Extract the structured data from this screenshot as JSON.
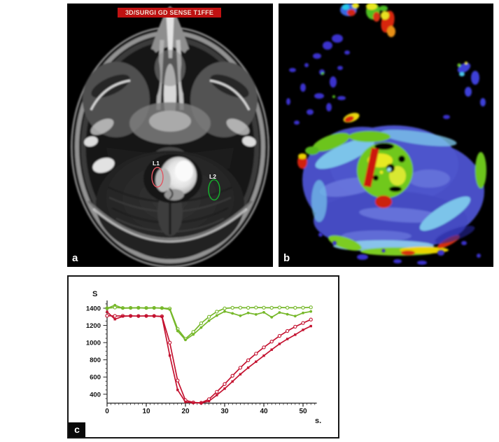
{
  "panel_a": {
    "label": "a",
    "banner_text": "3D/SURGI GD SENSE T1FFE",
    "banner_color": "#c01212",
    "rois": [
      {
        "id": "L1",
        "label": "L1",
        "color": "#e25662"
      },
      {
        "id": "L2",
        "label": "L2",
        "color": "#17a62c"
      }
    ]
  },
  "panel_b": {
    "label": "b"
  },
  "panel_c": {
    "label": "c"
  },
  "chart_data": {
    "type": "line",
    "title": "",
    "ylabel": "S",
    "xlabel": "s.",
    "xlim": [
      0,
      53.5
    ],
    "ylim": [
      300,
      1470
    ],
    "xticks": [
      0,
      10,
      20,
      30,
      40,
      50
    ],
    "yticks": [
      400,
      600,
      800,
      1000,
      1200,
      1400
    ],
    "grid": false,
    "legend": "none",
    "x": [
      0,
      2,
      4,
      6,
      8,
      10,
      12,
      14,
      16,
      18,
      20,
      22,
      24,
      26,
      28,
      30,
      32,
      34,
      36,
      38,
      40,
      42,
      44,
      46,
      48,
      50,
      52
    ],
    "series": [
      {
        "name": "green-open-circles",
        "color": "#76b82a",
        "marker": "circle-open",
        "values": [
          1400,
          1408,
          1403,
          1404,
          1405,
          1403,
          1404,
          1402,
          1396,
          1160,
          1045,
          1125,
          1225,
          1300,
          1360,
          1398,
          1405,
          1406,
          1405,
          1408,
          1406,
          1405,
          1408,
          1406,
          1405,
          1406,
          1410
        ]
      },
      {
        "name": "green-filled",
        "color": "#76b82a",
        "marker": "circle-filled",
        "values": [
          1398,
          1435,
          1400,
          1402,
          1405,
          1400,
          1404,
          1400,
          1385,
          1135,
          1032,
          1095,
          1175,
          1255,
          1315,
          1362,
          1340,
          1312,
          1345,
          1328,
          1352,
          1295,
          1350,
          1330,
          1308,
          1345,
          1362
        ]
      },
      {
        "name": "red-open-circles",
        "color": "#c41230",
        "marker": "circle-open",
        "values": [
          1312,
          1310,
          1311,
          1310,
          1309,
          1310,
          1310,
          1306,
          1000,
          560,
          330,
          305,
          300,
          342,
          428,
          518,
          615,
          708,
          795,
          872,
          945,
          1012,
          1078,
          1135,
          1185,
          1228,
          1268
        ]
      },
      {
        "name": "red-filled",
        "color": "#c41230",
        "marker": "square-filled",
        "values": [
          1358,
          1272,
          1305,
          1310,
          1308,
          1310,
          1309,
          1302,
          850,
          450,
          310,
          300,
          298,
          320,
          390,
          465,
          548,
          632,
          708,
          778,
          848,
          918,
          985,
          1042,
          1092,
          1148,
          1192
        ]
      }
    ]
  }
}
